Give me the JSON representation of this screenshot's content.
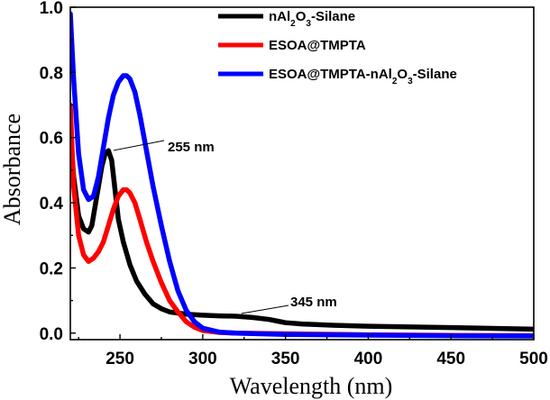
{
  "chart_data": {
    "type": "line",
    "title": "",
    "xlabel": "Wavelength (nm)",
    "ylabel": "Absorbance",
    "xlim": [
      220,
      500
    ],
    "ylim": [
      -0.02,
      1.0
    ],
    "xticks": [
      250,
      300,
      350,
      400,
      450,
      500
    ],
    "yticks": [
      0.0,
      0.2,
      0.4,
      0.6,
      0.8,
      1.0
    ],
    "xtick_labels": [
      "250",
      "300",
      "350",
      "400",
      "450",
      "500"
    ],
    "ytick_labels": [
      "0.0",
      "0.2",
      "0.4",
      "0.6",
      "0.8",
      "1.0"
    ],
    "grid": false,
    "legend_position": "top-right",
    "series": [
      {
        "name": "nAl₂O₃-Silane",
        "color": "#000000",
        "x": [
          220,
          222,
          225,
          228,
          231,
          233,
          236,
          239,
          241,
          243,
          245,
          247,
          249,
          252,
          256,
          260,
          265,
          270,
          275,
          280,
          290,
          300,
          310,
          320,
          330,
          340,
          345,
          350,
          360,
          380,
          400,
          450,
          500
        ],
        "y": [
          0.62,
          0.48,
          0.36,
          0.32,
          0.31,
          0.33,
          0.42,
          0.51,
          0.55,
          0.56,
          0.53,
          0.44,
          0.35,
          0.28,
          0.21,
          0.16,
          0.12,
          0.09,
          0.075,
          0.065,
          0.058,
          0.055,
          0.053,
          0.052,
          0.048,
          0.042,
          0.037,
          0.032,
          0.028,
          0.024,
          0.021,
          0.017,
          0.012
        ]
      },
      {
        "name": "ESOA@TMPTA",
        "color": "#ff0000",
        "x": [
          220,
          222,
          225,
          228,
          231,
          234,
          237,
          240,
          243,
          246,
          249,
          252,
          254,
          256,
          259,
          262,
          266,
          270,
          275,
          280,
          285,
          290,
          295,
          300,
          310,
          320,
          350,
          400,
          450,
          500
        ],
        "y": [
          0.7,
          0.45,
          0.3,
          0.24,
          0.22,
          0.23,
          0.25,
          0.28,
          0.33,
          0.38,
          0.42,
          0.44,
          0.44,
          0.43,
          0.4,
          0.35,
          0.28,
          0.22,
          0.155,
          0.1,
          0.065,
          0.035,
          0.018,
          0.008,
          0.002,
          0.0,
          -0.002,
          -0.005,
          -0.007,
          -0.008
        ]
      },
      {
        "name": "ESOA@TMPTA-nAl₂O₃-Silane",
        "color": "#0000ff",
        "x": [
          220,
          222,
          225,
          228,
          231,
          234,
          237,
          240,
          243,
          246,
          249,
          252,
          254,
          256,
          259,
          262,
          266,
          270,
          275,
          280,
          285,
          290,
          295,
          300,
          310,
          320,
          350,
          400,
          450,
          500
        ],
        "y": [
          0.98,
          0.78,
          0.55,
          0.44,
          0.41,
          0.42,
          0.48,
          0.57,
          0.66,
          0.73,
          0.77,
          0.79,
          0.79,
          0.78,
          0.74,
          0.67,
          0.56,
          0.45,
          0.33,
          0.22,
          0.13,
          0.07,
          0.035,
          0.015,
          0.003,
          0.0,
          -0.004,
          -0.006,
          -0.008,
          -0.009
        ]
      }
    ],
    "legend": [
      {
        "label_main": "nAl",
        "sub1": "2",
        "mid": "O",
        "sub2": "3",
        "label_rest": "-Silane",
        "color": "#000000"
      },
      {
        "label_main": "ESOA@TMPTA",
        "sub1": "",
        "mid": "",
        "sub2": "",
        "label_rest": "",
        "color": "#ff0000"
      },
      {
        "label_main": "ESOA@TMPTA-nAl",
        "sub1": "2",
        "mid": "O",
        "sub2": "3",
        "label_rest": "-Silane",
        "color": "#0000ff"
      }
    ],
    "annotations": [
      {
        "text": "255 nm",
        "x": 244,
        "y": 0.555
      },
      {
        "text": "345 nm",
        "x": 331,
        "y": 0.052
      }
    ]
  }
}
